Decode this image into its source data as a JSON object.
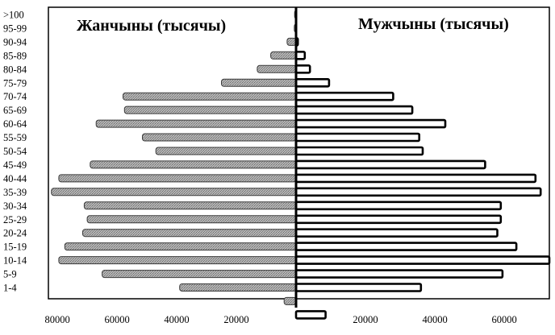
{
  "chart_data": {
    "type": "bar",
    "orientation": "horizontal-population-pyramid",
    "categories": [
      ">100",
      "95-99",
      "90-94",
      "85-89",
      "80-84",
      "75-79",
      "70-74",
      "65-69",
      "60-64",
      "55-59",
      "50-54",
      "45-49",
      "40-44",
      "35-39",
      "30-34",
      "25-29",
      "20-24",
      "15-19",
      "10-14",
      "5-9",
      "1-4",
      "",
      ""
    ],
    "series": [
      {
        "name": "Жанчыны (тысячы)",
        "side": "left",
        "values": [
          500,
          600,
          3000,
          8500,
          13000,
          25000,
          58000,
          57500,
          67000,
          51500,
          47000,
          69000,
          79500,
          82000,
          71000,
          70000,
          71500,
          77500,
          79500,
          65000,
          39000,
          4000,
          0
        ]
      },
      {
        "name": "Мужчыны (тысячы)",
        "side": "right",
        "values": [
          0,
          0,
          500,
          2500,
          4000,
          9500,
          28000,
          33500,
          43000,
          35500,
          36500,
          54500,
          69000,
          70500,
          59000,
          59000,
          58000,
          63500,
          73000,
          59500,
          36000,
          0,
          8500
        ]
      }
    ],
    "x_tick_labels": [
      "80000",
      "60000",
      "40000",
      "20000",
      "20000",
      "40000",
      "60000"
    ],
    "xlim_left": 83000,
    "xlim_right": 73000,
    "colors": {
      "female_fill": "#a8a8a8",
      "male_fill": "#ffffff",
      "bar_stroke": "#000000"
    },
    "grid": false,
    "legend": "none"
  }
}
